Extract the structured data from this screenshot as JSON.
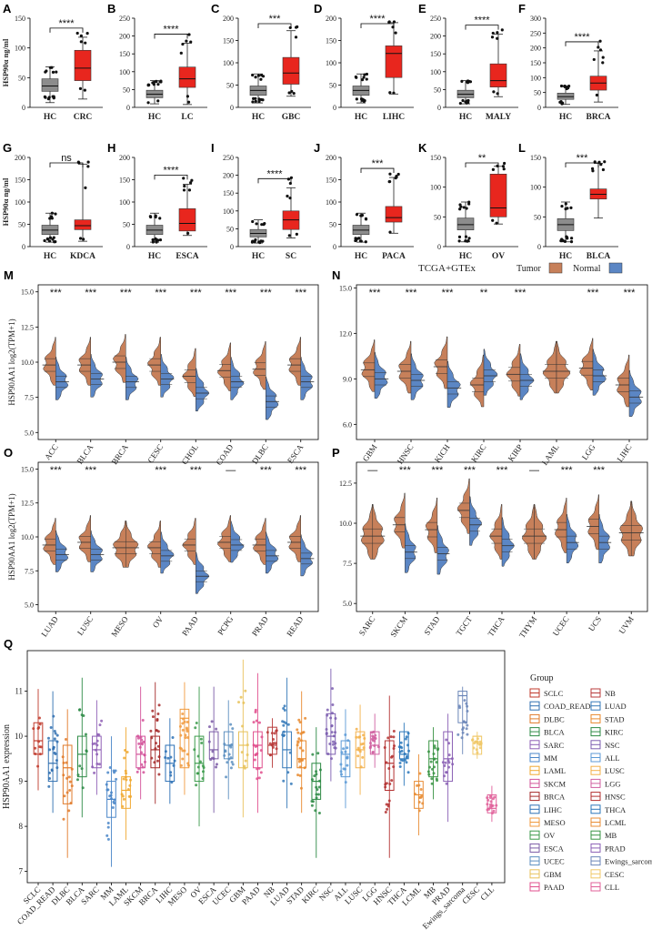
{
  "figure": {
    "tcga_title": "TCGA+GTEx",
    "legend_tumor": "Tumor",
    "legend_normal": "Normal",
    "violin_ylabel": "HSP90AA1  log2(TPM+1)",
    "box_ylabel": "HSP90α  ng/ml",
    "q_ylabel": "HSP90AA1  expression",
    "q_legend_title": "Group"
  },
  "colors": {
    "hc": "#8c8c8c",
    "tumor": "#e8261e",
    "violin_tumor": "#c7805a",
    "violin_normal": "#5b86c4"
  },
  "chart_data": [
    {
      "type": "box",
      "panel": "A",
      "categories": [
        "HC",
        "CRC"
      ],
      "ylim": [
        0,
        150
      ],
      "yticks": [
        0,
        50,
        100,
        150
      ],
      "ylabel": "HSP90α  ng/ml",
      "boxes": [
        {
          "whislo": 8,
          "q1": 27,
          "median": 36,
          "q3": 48,
          "whishi": 68
        },
        {
          "whislo": 14,
          "q1": 45,
          "median": 66,
          "q3": 96,
          "whishi": 118
        }
      ],
      "significance": "****"
    },
    {
      "type": "box",
      "panel": "B",
      "categories": [
        "HC",
        "LC"
      ],
      "ylim": [
        0,
        250
      ],
      "yticks": [
        0,
        50,
        100,
        150,
        200,
        250
      ],
      "boxes": [
        {
          "whislo": 10,
          "q1": 27,
          "median": 37,
          "q3": 48,
          "whishi": 75
        },
        {
          "whislo": 8,
          "q1": 56,
          "median": 80,
          "q3": 113,
          "whishi": 180
        }
      ],
      "significance": "****"
    },
    {
      "type": "box",
      "panel": "C",
      "categories": [
        "HC",
        "GBC"
      ],
      "ylim": [
        0,
        200
      ],
      "yticks": [
        0,
        50,
        100,
        150,
        200
      ],
      "boxes": [
        {
          "whislo": 10,
          "q1": 27,
          "median": 38,
          "q3": 48,
          "whishi": 75
        },
        {
          "whislo": 25,
          "q1": 52,
          "median": 77,
          "q3": 112,
          "whishi": 172
        }
      ],
      "significance": "***"
    },
    {
      "type": "box",
      "panel": "D",
      "categories": [
        "HC",
        "LIHC"
      ],
      "ylim": [
        0,
        200
      ],
      "yticks": [
        0,
        50,
        100,
        150,
        200
      ],
      "boxes": [
        {
          "whislo": 10,
          "q1": 27,
          "median": 38,
          "q3": 48,
          "whishi": 75
        },
        {
          "whislo": 30,
          "q1": 67,
          "median": 121,
          "q3": 138,
          "whishi": 190
        }
      ],
      "significance": "****"
    },
    {
      "type": "box",
      "panel": "E",
      "categories": [
        "HC",
        "MALY"
      ],
      "ylim": [
        0,
        250
      ],
      "yticks": [
        0,
        50,
        100,
        150,
        200,
        250
      ],
      "boxes": [
        {
          "whislo": 10,
          "q1": 27,
          "median": 37,
          "q3": 48,
          "whishi": 75
        },
        {
          "whislo": 30,
          "q1": 57,
          "median": 75,
          "q3": 122,
          "whishi": 205
        }
      ],
      "significance": "****"
    },
    {
      "type": "box",
      "panel": "F",
      "categories": [
        "HC",
        "BRCA"
      ],
      "ylim": [
        0,
        300
      ],
      "yticks": [
        0,
        50,
        100,
        150,
        200,
        250,
        300
      ],
      "boxes": [
        {
          "whislo": 10,
          "q1": 27,
          "median": 36,
          "q3": 48,
          "whishi": 72
        },
        {
          "whislo": 18,
          "q1": 58,
          "median": 82,
          "q3": 105,
          "whishi": 190
        }
      ],
      "significance": "****"
    },
    {
      "type": "box",
      "panel": "G",
      "categories": [
        "HC",
        "KDCA"
      ],
      "ylim": [
        0,
        200
      ],
      "yticks": [
        0,
        50,
        100,
        150,
        200
      ],
      "ylabel": "HSP90α  ng/ml",
      "boxes": [
        {
          "whislo": 10,
          "q1": 27,
          "median": 37,
          "q3": 48,
          "whishi": 75
        },
        {
          "whislo": 12,
          "q1": 38,
          "median": 47,
          "q3": 60,
          "whishi": 185
        }
      ],
      "significance": "ns"
    },
    {
      "type": "box",
      "panel": "H",
      "categories": [
        "HC",
        "ESCA"
      ],
      "ylim": [
        0,
        200
      ],
      "yticks": [
        0,
        50,
        100,
        150,
        200
      ],
      "boxes": [
        {
          "whislo": 10,
          "q1": 27,
          "median": 37,
          "q3": 48,
          "whishi": 75
        },
        {
          "whislo": 25,
          "q1": 35,
          "median": 52,
          "q3": 85,
          "whishi": 140
        }
      ],
      "significance": "****"
    },
    {
      "type": "box",
      "panel": "I",
      "categories": [
        "HC",
        "SC"
      ],
      "ylim": [
        0,
        250
      ],
      "yticks": [
        0,
        50,
        100,
        150,
        200,
        250
      ],
      "boxes": [
        {
          "whislo": 10,
          "q1": 27,
          "median": 37,
          "q3": 48,
          "whishi": 75
        },
        {
          "whislo": 24,
          "q1": 48,
          "median": 75,
          "q3": 100,
          "whishi": 165
        }
      ],
      "significance": "****"
    },
    {
      "type": "box",
      "panel": "J",
      "categories": [
        "HC",
        "PACA"
      ],
      "ylim": [
        0,
        200
      ],
      "yticks": [
        0,
        50,
        100,
        150,
        200
      ],
      "boxes": [
        {
          "whislo": 10,
          "q1": 27,
          "median": 37,
          "q3": 48,
          "whishi": 75
        },
        {
          "whislo": 30,
          "q1": 55,
          "median": 65,
          "q3": 90,
          "whishi": 155
        }
      ],
      "significance": "***"
    },
    {
      "type": "box",
      "panel": "K",
      "categories": [
        "HC",
        "OV"
      ],
      "ylim": [
        0,
        150
      ],
      "yticks": [
        0,
        50,
        100,
        150
      ],
      "boxes": [
        {
          "whislo": 8,
          "q1": 28,
          "median": 37,
          "q3": 48,
          "whishi": 75
        },
        {
          "whislo": 38,
          "q1": 50,
          "median": 65,
          "q3": 122,
          "whishi": 135
        }
      ],
      "significance": "**"
    },
    {
      "type": "box",
      "panel": "L",
      "categories": [
        "HC",
        "BLCA"
      ],
      "ylim": [
        0,
        150
      ],
      "yticks": [
        0,
        50,
        100,
        150
      ],
      "boxes": [
        {
          "whislo": 8,
          "q1": 27,
          "median": 37,
          "q3": 47,
          "whishi": 75
        },
        {
          "whislo": 48,
          "q1": 80,
          "median": 88,
          "q3": 97,
          "whishi": 140
        }
      ],
      "significance": "***"
    },
    {
      "type": "split-violin",
      "panel": "M",
      "ylim": [
        4.5,
        15.5
      ],
      "yticks": [
        5.0,
        7.5,
        10.0,
        12.5,
        15.0
      ],
      "ylabel": "HSP90AA1  log2(TPM+1)",
      "categories": [
        "ACC",
        "BLCA",
        "BRCA",
        "CESC",
        "CHOL",
        "COAD",
        "DLBC",
        "ESCA"
      ],
      "tumor_median": [
        9.8,
        9.8,
        10.0,
        9.8,
        9.0,
        9.4,
        9.5,
        9.8
      ],
      "normal_median": [
        8.6,
        8.8,
        8.6,
        8.8,
        7.8,
        8.6,
        7.2,
        8.6
      ],
      "significance": [
        "***",
        "***",
        "***",
        "***",
        "***",
        "***",
        "***",
        "***"
      ]
    },
    {
      "type": "split-violin",
      "panel": "N",
      "title": "TCGA+GTEx",
      "ylim": [
        5.0,
        15.2
      ],
      "yticks": [
        6.0,
        9.0,
        12.0,
        15.0
      ],
      "categories": [
        "GBM",
        "HNSC",
        "KICH",
        "KIRC",
        "KIRP",
        "LAML",
        "LGG",
        "LIHC"
      ],
      "tumor_median": [
        9.6,
        9.5,
        9.8,
        8.6,
        9.3,
        9.5,
        9.7,
        8.6
      ],
      "normal_median": [
        9.0,
        8.9,
        8.4,
        9.2,
        8.9,
        null,
        9.2,
        7.8
      ],
      "significance": [
        "***",
        "***",
        "***",
        "**",
        "***",
        "",
        "***",
        "***"
      ]
    },
    {
      "type": "split-violin",
      "panel": "O",
      "ylim": [
        4.5,
        15.5
      ],
      "yticks": [
        5.0,
        7.5,
        10.0,
        12.5,
        15.0
      ],
      "ylabel": "HSP90AA1  log2(TPM+1)",
      "categories": [
        "LUAD",
        "LUSC",
        "MESO",
        "OV",
        "PAAD",
        "PCPG",
        "PRAD",
        "READ"
      ],
      "tumor_median": [
        9.4,
        9.6,
        9.2,
        9.2,
        9.4,
        9.6,
        9.4,
        9.6
      ],
      "normal_median": [
        8.7,
        8.7,
        null,
        8.6,
        7.1,
        9.4,
        8.6,
        8.4
      ],
      "significance": [
        "***",
        "***",
        "",
        "***",
        "***",
        "—",
        "***",
        "***"
      ]
    },
    {
      "type": "split-violin",
      "panel": "P",
      "ylim": [
        4.5,
        13.8
      ],
      "yticks": [
        5.0,
        7.5,
        10.0,
        12.5
      ],
      "categories": [
        "SARC",
        "SKCM",
        "STAD",
        "TGCT",
        "THCA",
        "THYM",
        "UCEC",
        "UCS",
        "UVM"
      ],
      "tumor_median": [
        9.2,
        9.9,
        9.6,
        10.8,
        9.2,
        9.2,
        9.6,
        9.8,
        9.4
      ],
      "normal_median": [
        null,
        8.2,
        8.1,
        9.9,
        8.6,
        null,
        8.8,
        8.8,
        null
      ],
      "significance": [
        "—",
        "***",
        "***",
        "***",
        "***",
        "—",
        "***",
        "***",
        ""
      ]
    },
    {
      "type": "box-strip",
      "panel": "Q",
      "ylabel": "HSP90AA1  expression",
      "ylim": [
        6.75,
        11.9
      ],
      "yticks": [
        7,
        8,
        9,
        10,
        11
      ],
      "categories": [
        "SCLC",
        "COAD_READ",
        "DLBC",
        "BLCA",
        "SARC",
        "MM",
        "LAML",
        "SKCM",
        "BRCA",
        "LIHC",
        "MESO",
        "OV",
        "ESCA",
        "UCEC",
        "GBM",
        "PAAD",
        "NB",
        "LUAD",
        "STAD",
        "KIRC",
        "NSC",
        "ALL",
        "LUSC",
        "LGG",
        "HNSC",
        "THCA",
        "LCML",
        "MB",
        "PRAD",
        "Ewings_sarcoma",
        "CESC",
        "CLL"
      ],
      "boxes": [
        {
          "whislo": 8.8,
          "q1": 9.6,
          "median": 9.9,
          "q3": 10.3,
          "whishi": 11.05
        },
        {
          "whislo": 8.3,
          "q1": 9.0,
          "median": 9.4,
          "q3": 9.9,
          "whishi": 11.0
        },
        {
          "whislo": 7.3,
          "q1": 8.5,
          "median": 9.3,
          "q3": 9.8,
          "whishi": 10.6
        },
        {
          "whislo": 8.2,
          "q1": 9.1,
          "median": 9.6,
          "q3": 10.0,
          "whishi": 11.3
        },
        {
          "whislo": 8.7,
          "q1": 9.3,
          "median": 9.7,
          "q3": 10.0,
          "whishi": 10.8
        },
        {
          "whislo": 7.1,
          "q1": 8.2,
          "median": 8.6,
          "q3": 9.0,
          "whishi": 10.0
        },
        {
          "whislo": 7.7,
          "q1": 8.4,
          "median": 8.8,
          "q3": 9.1,
          "whishi": 10.2
        },
        {
          "whislo": 8.6,
          "q1": 9.3,
          "median": 9.6,
          "q3": 10.0,
          "whishi": 11.1
        },
        {
          "whislo": 8.5,
          "q1": 9.3,
          "median": 9.7,
          "q3": 10.0,
          "whishi": 11.2
        },
        {
          "whislo": 8.5,
          "q1": 9.0,
          "median": 9.4,
          "q3": 9.8,
          "whishi": 10.4
        },
        {
          "whislo": 8.7,
          "q1": 9.3,
          "median": 10.4,
          "q3": 10.6,
          "whishi": 11.2
        },
        {
          "whislo": 8.0,
          "q1": 9.0,
          "median": 9.4,
          "q3": 10.0,
          "whishi": 11.1
        },
        {
          "whislo": 8.3,
          "q1": 9.5,
          "median": 9.7,
          "q3": 10.1,
          "whishi": 11.1
        },
        {
          "whislo": 8.6,
          "q1": 9.5,
          "median": 9.8,
          "q3": 10.1,
          "whishi": 10.8
        },
        {
          "whislo": 8.2,
          "q1": 9.3,
          "median": 9.8,
          "q3": 10.1,
          "whishi": 11.7
        },
        {
          "whislo": 8.3,
          "q1": 9.3,
          "median": 9.8,
          "q3": 10.1,
          "whishi": 11.4
        },
        {
          "whislo": 9.3,
          "q1": 9.6,
          "median": 9.8,
          "q3": 10.2,
          "whishi": 10.4
        },
        {
          "whislo": 8.4,
          "q1": 9.3,
          "median": 9.7,
          "q3": 10.1,
          "whishi": 11.3
        },
        {
          "whislo": 8.3,
          "q1": 9.3,
          "median": 9.5,
          "q3": 9.9,
          "whishi": 11.0
        },
        {
          "whislo": 7.3,
          "q1": 8.6,
          "median": 9.0,
          "q3": 9.4,
          "whishi": 10.2
        },
        {
          "whislo": 9.0,
          "q1": 9.6,
          "median": 10.0,
          "q3": 10.5,
          "whishi": 11.5
        },
        {
          "whislo": 8.4,
          "q1": 9.1,
          "median": 9.6,
          "q3": 9.9,
          "whishi": 10.6
        },
        {
          "whislo": 8.7,
          "q1": 9.3,
          "median": 9.7,
          "q3": 10.1,
          "whishi": 10.7
        },
        {
          "whislo": 9.3,
          "q1": 9.6,
          "median": 9.8,
          "q3": 10.1,
          "whishi": 10.5
        },
        {
          "whislo": 7.3,
          "q1": 8.8,
          "median": 9.4,
          "q3": 9.9,
          "whishi": 10.9
        },
        {
          "whislo": 8.9,
          "q1": 9.5,
          "median": 9.6,
          "q3": 10.1,
          "whishi": 10.3
        },
        {
          "whislo": 7.8,
          "q1": 8.4,
          "median": 8.7,
          "q3": 9.0,
          "whishi": 9.6
        },
        {
          "whislo": 8.6,
          "q1": 9.1,
          "median": 9.5,
          "q3": 9.9,
          "whishi": 10.2
        },
        {
          "whislo": 8.1,
          "q1": 9.0,
          "median": 9.5,
          "q3": 10.1,
          "whishi": 10.5
        },
        {
          "whislo": 9.6,
          "q1": 10.3,
          "median": 10.9,
          "q3": 11.0,
          "whishi": 11.1
        },
        {
          "whislo": 9.5,
          "q1": 9.6,
          "median": 10.0,
          "q3": 10.0,
          "whishi": 10.1
        },
        {
          "whislo": 8.1,
          "q1": 8.3,
          "median": 8.4,
          "q3": 8.7,
          "whishi": 8.9
        }
      ]
    }
  ],
  "q_legend_left": [
    "SCLC",
    "COAD_READ",
    "DLBC",
    "BLCA",
    "SARC",
    "MM",
    "LAML",
    "SKCM",
    "BRCA",
    "LIHC",
    "MESO",
    "OV",
    "ESCA",
    "UCEC",
    "GBM",
    "PAAD"
  ],
  "q_legend_right": [
    "NB",
    "LUAD",
    "STAD",
    "KIRC",
    "NSC",
    "ALL",
    "LUSC",
    "LGG",
    "HNSC",
    "THCA",
    "LCML",
    "MB",
    "PRAD",
    "Ewings_sarcoma",
    "CESC",
    "CLL"
  ],
  "q_colors": [
    "#c0392b",
    "#2f6fb0",
    "#e07a2a",
    "#2e8b46",
    "#8e5fb5",
    "#4a86c8",
    "#f0a830",
    "#d2529a",
    "#a52a2a",
    "#2c70b5",
    "#f09a3e",
    "#3a9a4a",
    "#7b5ba6",
    "#5c8fc0",
    "#e8c25a",
    "#e04f8d",
    "#b83b3b",
    "#3579b8",
    "#e8892e",
    "#2d8a44",
    "#7d5fb0",
    "#5c9ad6",
    "#f3b04a",
    "#d05fa0",
    "#b33030",
    "#2c78bb",
    "#e88c34",
    "#3a9444",
    "#8a5fb4",
    "#6b86b8",
    "#f0c868",
    "#e0609a"
  ]
}
